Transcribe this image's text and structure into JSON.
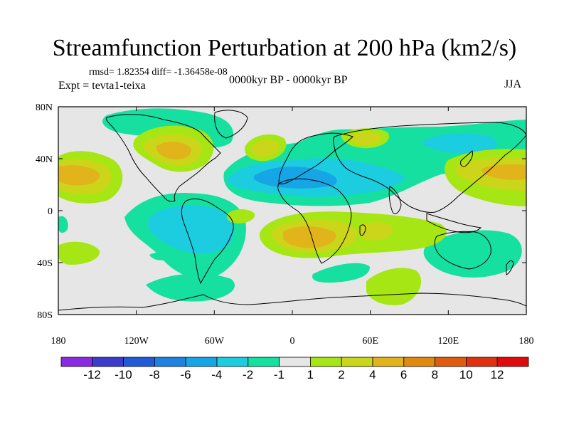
{
  "title": "Streamfunction Perturbation at 200 hPa (km2/s)",
  "stats": "rmsd= 1.82354  diff= -1.36458e-08",
  "experiment": "Expt = tevta1-teixa",
  "period": "0000kyr BP - 0000kyr BP",
  "season": "JJA",
  "map": {
    "x_ticks": [
      "180",
      "120W",
      "60W",
      "0",
      "60E",
      "120E",
      "180"
    ],
    "y_ticks": [
      "80N",
      "40N",
      "0",
      "40S",
      "80S"
    ]
  },
  "colorbar": {
    "labels": [
      "-12",
      "-10",
      "-8",
      "-6",
      "-4",
      "-2",
      "-1",
      "1",
      "2",
      "4",
      "6",
      "8",
      "10",
      "12"
    ],
    "colors": [
      "#8a2be2",
      "#3c3ccc",
      "#1f5bd6",
      "#1e82e0",
      "#16a6e6",
      "#1ccde0",
      "#16e0a0",
      "#e6e6e6",
      "#a6e614",
      "#cbd61a",
      "#e0b41a",
      "#e08a12",
      "#e05a10",
      "#e0300e",
      "#e00a0a"
    ]
  },
  "field_colors": {
    "ocean_bg": "#e6e6e6",
    "neg1": "#16e0a0",
    "neg2": "#1ccde0",
    "neg4": "#16a6e6",
    "pos1": "#a6e614",
    "pos2": "#cbd61a",
    "pos4": "#e0b41a",
    "coast": "#000000"
  }
}
